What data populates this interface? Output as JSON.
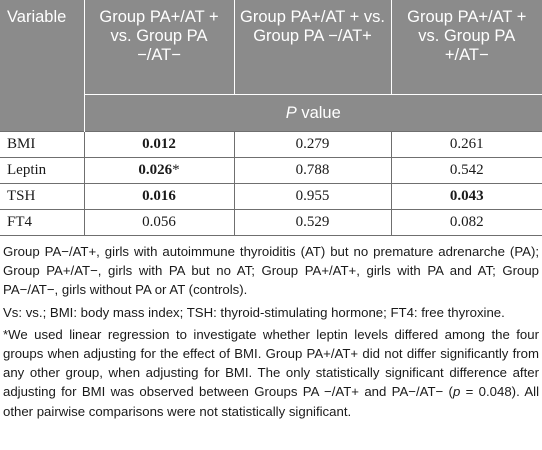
{
  "table": {
    "header": {
      "variable": "Variable",
      "groups": [
        "Group PA+/AT + vs. Group PA −/AT−",
        "Group PA+/AT + vs. Group PA −/AT+",
        "Group PA+/AT + vs. Group PA +/AT−"
      ],
      "pvalue_label": "P",
      "pvalue_suffix": " value"
    },
    "rows": [
      {
        "label": "BMI",
        "values": [
          "0.012",
          "0.279",
          "0.261"
        ]
      },
      {
        "label": "Leptin",
        "values": [
          "0.026",
          "0.788",
          "0.542"
        ],
        "marker": "*"
      },
      {
        "label": "TSH",
        "values": [
          "0.016",
          "0.955",
          "0.043"
        ]
      },
      {
        "label": "FT4",
        "values": [
          "0.056",
          "0.529",
          "0.082"
        ]
      }
    ]
  },
  "notes": {
    "groups": "Group PA−/AT+, girls with autoimmune thyroiditis (AT) but no premature adrenarche (PA); Group PA+/AT−, girls with PA but no AT; Group PA+/AT+, girls with PA and AT; Group PA−/AT−, girls without PA or AT (controls).",
    "abbreviations": "Vs: vs.; BMI: body mass index; TSH: thyroid-stimulating hormone; FT4: free thyroxine.",
    "footnote_a": "*We used linear regression to investigate whether leptin levels differed among the four groups when adjusting for the effect of BMI. Group PA+/AT+ did not differ significantly from any other group, when adjusting for BMI. The only statistically significant difference after adjusting for BMI was observed between Groups PA −/AT+ and PA−/AT− (",
    "footnote_p": "p",
    "footnote_b": " = 0.048). All other pairwise comparisons were not statistically significant."
  }
}
